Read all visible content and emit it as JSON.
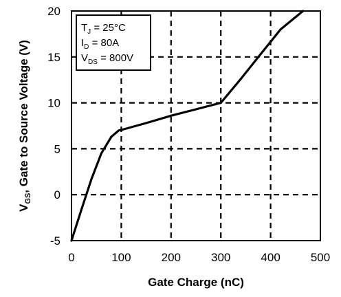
{
  "chart_data": {
    "type": "line",
    "xlabel": "Gate Charge (nC)",
    "ylabel_main": "V",
    "ylabel_sub": "GS",
    "ylabel_rest": ", Gate to Source Voltage (V)",
    "xlim": [
      0,
      500
    ],
    "ylim": [
      -5,
      20
    ],
    "x_ticks": [
      0,
      100,
      200,
      300,
      400,
      500
    ],
    "y_ticks": [
      -5,
      0,
      5,
      10,
      15,
      20
    ],
    "x_tick_labels": [
      "0",
      "100",
      "200",
      "300",
      "400",
      "500"
    ],
    "y_tick_labels": [
      "-5",
      "0",
      "5",
      "10",
      "15",
      "20"
    ],
    "grid": true,
    "grid_style": "dashed",
    "legend_placement": "top-left",
    "conditions": [
      {
        "main": "T",
        "sub": "J",
        "rest": " = 25°C"
      },
      {
        "main": "I",
        "sub": "D",
        "rest": " = 80A"
      },
      {
        "main": "V",
        "sub": "DS",
        "rest": " = 800V"
      }
    ],
    "series": [
      {
        "x": [
          0,
          20,
          40,
          60,
          80,
          95,
          100,
          150,
          200,
          250,
          300,
          340,
          380,
          420,
          465
        ],
        "y": [
          -5,
          -1.6,
          1.7,
          4.5,
          6.3,
          7.0,
          7.05,
          7.8,
          8.6,
          9.3,
          10.0,
          12.6,
          15.3,
          18.0,
          20.0
        ]
      }
    ],
    "line_color": "#000000"
  }
}
